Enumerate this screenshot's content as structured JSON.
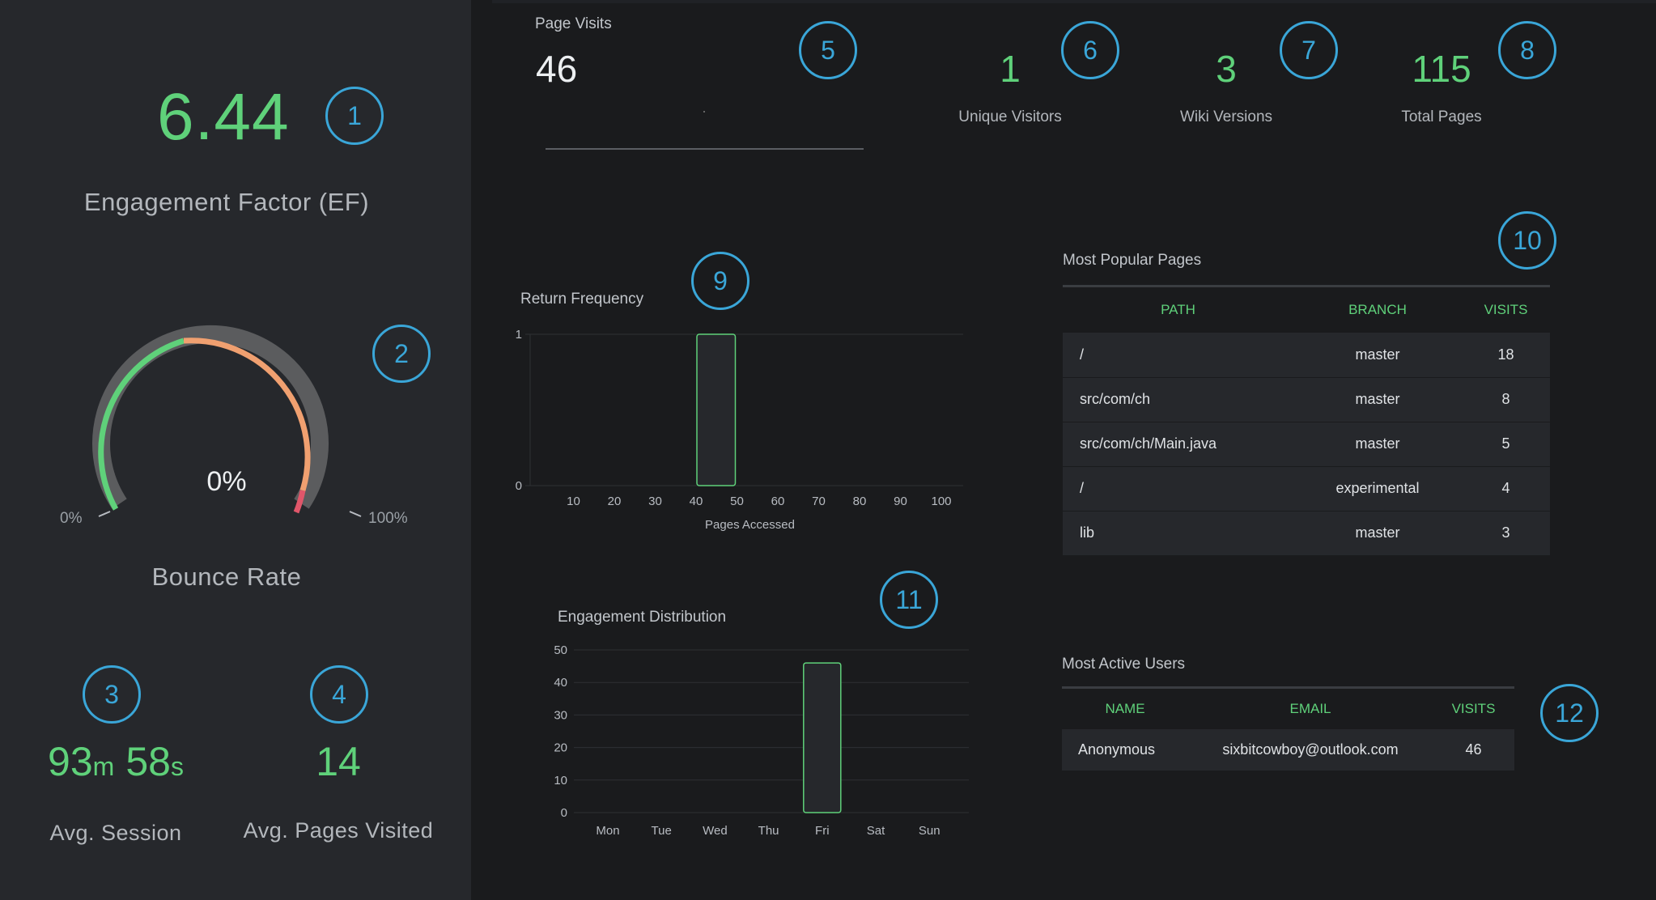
{
  "left_panel": {
    "engagement_factor": {
      "value": "6.44",
      "label": "Engagement Factor (EF)"
    },
    "bounce_rate": {
      "value": "0%",
      "min_label": "0%",
      "max_label": "100%",
      "label": "Bounce Rate",
      "fraction": 0
    },
    "avg_session": {
      "minutes": "93",
      "minutes_unit": "m",
      "seconds": "58",
      "seconds_unit": "s",
      "label": "Avg. Session"
    },
    "avg_pages": {
      "value": "14",
      "label": "Avg. Pages Visited"
    }
  },
  "kpis": {
    "page_visits": {
      "label": "Page Visits",
      "value": "46"
    },
    "unique_visitors": {
      "value": "1",
      "label": "Unique Visitors"
    },
    "wiki_versions": {
      "value": "3",
      "label": "Wiki Versions"
    },
    "total_pages": {
      "value": "115",
      "label": "Total Pages"
    }
  },
  "markers": [
    "1",
    "2",
    "3",
    "4",
    "5",
    "6",
    "7",
    "8",
    "9",
    "10",
    "11",
    "12"
  ],
  "popular_pages": {
    "title": "Most Popular Pages",
    "columns": [
      "PATH",
      "BRANCH",
      "VISITS"
    ],
    "rows": [
      {
        "path": "/",
        "branch": "master",
        "visits": "18"
      },
      {
        "path": "src/com/ch",
        "branch": "master",
        "visits": "8"
      },
      {
        "path": "src/com/ch/Main.java",
        "branch": "master",
        "visits": "5"
      },
      {
        "path": "/",
        "branch": "experimental",
        "visits": "4"
      },
      {
        "path": "lib",
        "branch": "master",
        "visits": "3"
      }
    ]
  },
  "active_users": {
    "title": "Most Active Users",
    "columns": [
      "NAME",
      "EMAIL",
      "VISITS"
    ],
    "rows": [
      {
        "name": "Anonymous",
        "email": "sixbitcowboy@outlook.com",
        "visits": "46"
      }
    ]
  },
  "colors": {
    "accent_green": "#5fd17a",
    "marker_blue": "#3aa6d8",
    "gauge_orange": "#f0a070",
    "gauge_red": "#e0566a"
  },
  "chart_data": [
    {
      "type": "bar",
      "title": "Return Frequency",
      "xlabel": "Pages Accessed",
      "ylabel": "",
      "x_ticks": [
        10,
        20,
        30,
        40,
        50,
        60,
        70,
        80,
        90,
        100
      ],
      "y_ticks": [
        0,
        1
      ],
      "bars": [
        {
          "x_start": 40,
          "x_end": 50,
          "value": 1
        }
      ],
      "xlim": [
        0,
        100
      ],
      "ylim": [
        0,
        1
      ]
    },
    {
      "type": "bar",
      "title": "Engagement Distribution",
      "xlabel": "",
      "ylabel": "",
      "categories": [
        "Mon",
        "Tue",
        "Wed",
        "Thu",
        "Fri",
        "Sat",
        "Sun"
      ],
      "values": [
        0,
        0,
        0,
        0,
        46,
        0,
        0
      ],
      "y_ticks": [
        0,
        10,
        20,
        30,
        40,
        50
      ],
      "ylim": [
        0,
        50
      ]
    }
  ]
}
